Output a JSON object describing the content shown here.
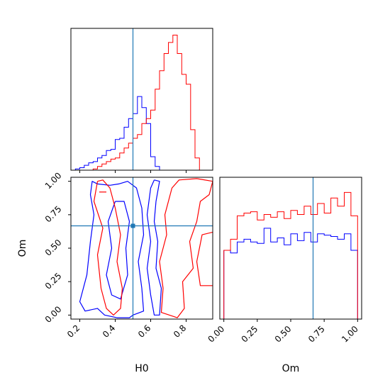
{
  "chart_data": [
    {
      "type": "histogram",
      "panel": "top-left",
      "title": "",
      "xlabel": "",
      "ylabel": "",
      "xlim": [
        0.15,
        0.95
      ],
      "x_ticks": [
        0.2,
        0.4,
        0.6,
        0.8
      ],
      "y_ticks": [],
      "bin_edges": [
        0.15,
        0.175,
        0.2,
        0.225,
        0.25,
        0.275,
        0.3,
        0.325,
        0.35,
        0.375,
        0.4,
        0.425,
        0.45,
        0.475,
        0.5,
        0.525,
        0.55,
        0.575,
        0.6,
        0.625,
        0.65,
        0.675,
        0.7,
        0.725,
        0.75,
        0.775,
        0.8,
        0.825,
        0.85,
        0.875,
        0.9,
        0.925,
        0.95
      ],
      "reference_line": {
        "value": 0.5,
        "color": "#1f77b4"
      },
      "series": [
        {
          "color": "#0000ff",
          "counts": [
            0,
            1,
            2,
            4,
            6,
            7,
            10,
            12,
            16,
            17,
            25,
            26,
            35,
            42,
            46,
            60,
            51,
            38,
            11,
            3,
            0,
            0,
            0,
            0,
            0,
            0,
            0,
            0,
            0,
            0,
            0,
            0
          ]
        },
        {
          "color": "#ff0000",
          "counts": [
            0,
            0,
            0,
            0,
            0,
            1,
            3,
            5,
            7,
            9,
            10,
            14,
            18,
            22,
            26,
            29,
            38,
            42,
            49,
            66,
            81,
            95,
            104,
            110,
            95,
            78,
            70,
            33,
            10,
            0,
            0,
            0
          ]
        }
      ]
    },
    {
      "type": "contour",
      "panel": "bottom-left",
      "title": "",
      "xlabel": "H0",
      "ylabel": "Om",
      "xlim": [
        0.15,
        0.95
      ],
      "ylim": [
        -0.03,
        1.03
      ],
      "x_ticks": [
        "0.2",
        "0.4",
        "0.6",
        "0.8"
      ],
      "y_ticks": [
        "0.00",
        "0.25",
        "0.50",
        "0.75",
        "1.00"
      ],
      "reference_point": {
        "x": 0.5,
        "y": 0.667,
        "color": "#1f77b4"
      },
      "series": [
        {
          "color": "#0000ff",
          "contours": [
            [
              [
                0.37,
                0.97
              ],
              [
                0.3,
                0.98
              ],
              [
                0.27,
                1.0
              ],
              [
                0.26,
                0.9
              ],
              [
                0.28,
                0.75
              ],
              [
                0.26,
                0.55
              ],
              [
                0.24,
                0.3
              ],
              [
                0.2,
                0.1
              ],
              [
                0.23,
                0.03
              ],
              [
                0.3,
                0.05
              ],
              [
                0.34,
                0.0
              ],
              [
                0.41,
                -0.02
              ],
              [
                0.48,
                -0.02
              ],
              [
                0.5,
                0.0
              ],
              [
                0.56,
                0.03
              ],
              [
                0.55,
                0.2
              ],
              [
                0.53,
                0.4
              ],
              [
                0.56,
                0.6
              ],
              [
                0.55,
                0.8
              ],
              [
                0.52,
                0.95
              ],
              [
                0.47,
                1.0
              ],
              [
                0.42,
                0.98
              ],
              [
                0.37,
                0.97
              ]
            ],
            [
              [
                0.62,
                1.01
              ],
              [
                0.6,
                0.95
              ],
              [
                0.58,
                0.75
              ],
              [
                0.6,
                0.55
              ],
              [
                0.58,
                0.35
              ],
              [
                0.6,
                0.15
              ],
              [
                0.62,
                0.0
              ],
              [
                0.65,
                0.0
              ],
              [
                0.66,
                0.2
              ],
              [
                0.63,
                0.35
              ],
              [
                0.64,
                0.55
              ],
              [
                0.62,
                0.7
              ],
              [
                0.63,
                0.85
              ],
              [
                0.65,
                1.0
              ],
              [
                0.62,
                1.01
              ]
            ],
            [
              [
                0.4,
                0.85
              ],
              [
                0.36,
                0.7
              ],
              [
                0.38,
                0.5
              ],
              [
                0.35,
                0.3
              ],
              [
                0.38,
                0.15
              ],
              [
                0.43,
                0.12
              ],
              [
                0.47,
                0.3
              ],
              [
                0.46,
                0.5
              ],
              [
                0.48,
                0.7
              ],
              [
                0.45,
                0.85
              ],
              [
                0.4,
                0.85
              ]
            ]
          ]
        },
        {
          "color": "#ff0000",
          "contours": [
            [
              [
                0.3,
                1.0
              ],
              [
                0.28,
                0.85
              ],
              [
                0.33,
                0.65
              ],
              [
                0.3,
                0.45
              ],
              [
                0.32,
                0.2
              ],
              [
                0.35,
                0.05
              ],
              [
                0.39,
                0.0
              ],
              [
                0.43,
                0.05
              ],
              [
                0.44,
                0.2
              ],
              [
                0.41,
                0.4
              ],
              [
                0.43,
                0.6
              ],
              [
                0.4,
                0.8
              ],
              [
                0.37,
                0.95
              ],
              [
                0.33,
                1.01
              ],
              [
                0.3,
                1.0
              ]
            ],
            [
              [
                0.86,
                1.02
              ],
              [
                0.76,
                1.01
              ],
              [
                0.72,
                0.95
              ],
              [
                0.68,
                0.75
              ],
              [
                0.69,
                0.6
              ],
              [
                0.65,
                0.4
              ],
              [
                0.67,
                0.2
              ],
              [
                0.66,
                0.02
              ],
              [
                0.75,
                -0.02
              ],
              [
                0.79,
                0.05
              ],
              [
                0.78,
                0.25
              ],
              [
                0.84,
                0.35
              ],
              [
                0.82,
                0.55
              ],
              [
                0.86,
                0.7
              ],
              [
                0.88,
                0.85
              ],
              [
                0.93,
                0.9
              ],
              [
                0.95,
                1.0
              ],
              [
                0.86,
                1.02
              ]
            ],
            [
              [
                0.95,
                0.22
              ],
              [
                0.88,
                0.22
              ],
              [
                0.86,
                0.4
              ],
              [
                0.89,
                0.6
              ],
              [
                0.95,
                0.62
              ]
            ],
            [
              [
                0.31,
                0.92
              ],
              [
                0.35,
                0.92
              ]
            ]
          ]
        }
      ]
    },
    {
      "type": "histogram",
      "panel": "bottom-right",
      "title": "",
      "xlabel": "Om",
      "ylabel": "",
      "xlim": [
        -0.03,
        1.03
      ],
      "x_ticks": [
        "0.00",
        "0.25",
        "0.50",
        "0.75",
        "1.00"
      ],
      "y_ticks": [],
      "bin_edges": [
        -0.05,
        0.0,
        0.05,
        0.1,
        0.15,
        0.2,
        0.25,
        0.3,
        0.35,
        0.4,
        0.45,
        0.5,
        0.55,
        0.6,
        0.65,
        0.7,
        0.75,
        0.8,
        0.85,
        0.9,
        0.95,
        1.0,
        1.05
      ],
      "reference_line": {
        "value": 0.667,
        "color": "#1f77b4"
      },
      "series": [
        {
          "color": "#0000ff",
          "counts": [
            0,
            50,
            48,
            56,
            58,
            56,
            55,
            66,
            56,
            59,
            54,
            62,
            57,
            63,
            56,
            62,
            61,
            60,
            58,
            62,
            50,
            0
          ]
        },
        {
          "color": "#ff0000",
          "counts": [
            0,
            50,
            58,
            75,
            77,
            78,
            72,
            76,
            74,
            78,
            73,
            79,
            76,
            82,
            76,
            84,
            77,
            88,
            82,
            92,
            75,
            0
          ]
        }
      ]
    }
  ]
}
